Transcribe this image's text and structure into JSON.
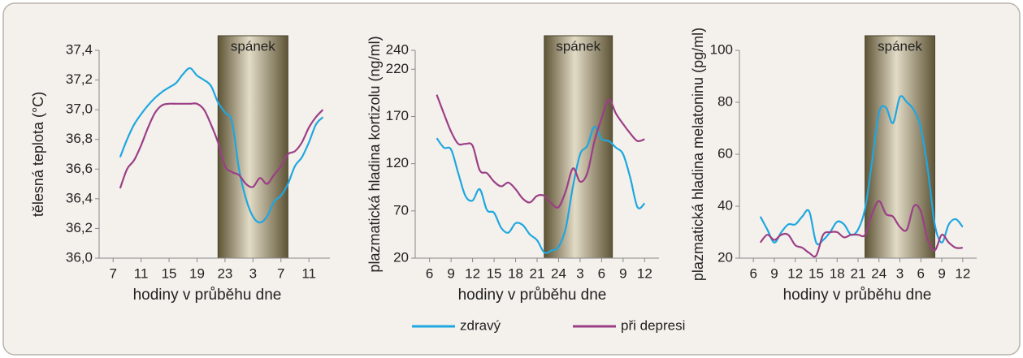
{
  "chart_data": [
    {
      "type": "line",
      "y_label": "tělesná teplota (°C)",
      "x_label": "hodiny v průběhu dne",
      "band": {
        "label": "spánek",
        "range": [
          22,
          32
        ]
      },
      "x": [
        7,
        8,
        9,
        10,
        11,
        12,
        13,
        14,
        15,
        16,
        17,
        18,
        19,
        20,
        21,
        22,
        23,
        24,
        25,
        26,
        27,
        28,
        29,
        30,
        31,
        32,
        33,
        34,
        35,
        36,
        37
      ],
      "xlim": [
        5,
        38
      ],
      "xticks": [
        7,
        11,
        15,
        19,
        23,
        {
          "value": 27,
          "label": "3"
        },
        {
          "value": 31,
          "label": "7"
        },
        {
          "value": 35,
          "label": "11"
        }
      ],
      "ylim": [
        36.0,
        37.4
      ],
      "yticks": [
        {
          "value": 36.0,
          "label": "36,0"
        },
        {
          "value": 36.2,
          "label": "36,2"
        },
        {
          "value": 36.4,
          "label": "36,4"
        },
        {
          "value": 36.6,
          "label": "36,6"
        },
        {
          "value": 36.8,
          "label": "36,8"
        },
        {
          "value": 37.0,
          "label": "37,0"
        },
        {
          "value": 37.2,
          "label": "37,2"
        },
        {
          "value": 37.4,
          "label": "37,4"
        }
      ],
      "series": [
        {
          "name": "zdravý",
          "color": "#1ea7e0",
          "values": [
            null,
            36.68,
            36.8,
            36.9,
            36.97,
            37.03,
            37.08,
            37.12,
            37.15,
            37.18,
            37.24,
            37.28,
            37.23,
            37.2,
            37.16,
            37.05,
            36.98,
            36.92,
            36.6,
            36.4,
            36.28,
            36.24,
            36.28,
            36.38,
            36.42,
            36.5,
            36.62,
            36.68,
            36.78,
            36.9,
            36.95
          ]
        },
        {
          "name": "při depresi",
          "color": "#9b3f86",
          "values": [
            null,
            36.47,
            36.6,
            36.66,
            36.76,
            36.88,
            36.98,
            37.03,
            37.04,
            37.04,
            37.04,
            37.04,
            37.04,
            37.0,
            36.9,
            36.78,
            36.62,
            36.58,
            36.56,
            36.5,
            36.48,
            36.54,
            36.5,
            36.56,
            36.62,
            36.7,
            36.72,
            36.78,
            36.88,
            36.95,
            37.0
          ]
        }
      ]
    },
    {
      "type": "line",
      "y_label": "plazmatická hladina kortizolu (ng/ml)",
      "x_label": "hodiny v průběhu dne",
      "band": {
        "label": "spánek",
        "range": [
          22,
          31.5
        ]
      },
      "x": [
        7,
        8,
        9,
        10,
        11,
        12,
        13,
        14,
        15,
        16,
        17,
        18,
        19,
        20,
        21,
        22,
        23,
        24,
        25,
        26,
        27,
        28,
        29,
        30,
        31,
        32,
        33,
        34,
        35,
        36
      ],
      "xlim": [
        4,
        38
      ],
      "xticks": [
        6,
        9,
        12,
        15,
        18,
        21,
        24,
        {
          "value": 27,
          "label": "3"
        },
        {
          "value": 30,
          "label": "6"
        },
        {
          "value": 33,
          "label": "9"
        },
        {
          "value": 36,
          "label": "12"
        }
      ],
      "ylim": [
        20,
        240
      ],
      "yticks": [
        20,
        70,
        120,
        170,
        220,
        240
      ],
      "series": [
        {
          "color": "#1ea7e0",
          "values": [
            147,
            137,
            135,
            110,
            86,
            81,
            93,
            71,
            68,
            52,
            47,
            57,
            55,
            45,
            39,
            26,
            28,
            32,
            52,
            96,
            130,
            139,
            159,
            146,
            144,
            137,
            130,
            105,
            74,
            78
          ]
        },
        {
          "color": "#9b3f86",
          "values": [
            193,
            173,
            154,
            141,
            141,
            139,
            113,
            110,
            101,
            96,
            100,
            93,
            83,
            79,
            86,
            86,
            78,
            74,
            91,
            115,
            101,
            110,
            144,
            168,
            188,
            173,
            162,
            152,
            144,
            146
          ]
        }
      ]
    },
    {
      "type": "line",
      "y_label": "plazmatická hladina melatoninu (pg/ml)",
      "x_label": "hodiny v průběhu dne",
      "band": {
        "label": "spánek",
        "range": [
          22,
          32
        ]
      },
      "x": [
        7,
        8,
        9,
        10,
        11,
        12,
        13,
        14,
        15,
        16,
        17,
        18,
        19,
        20,
        21,
        22,
        23,
        24,
        25,
        26,
        27,
        28,
        29,
        30,
        31,
        32,
        33,
        34,
        35,
        36
      ],
      "xlim": [
        4,
        38
      ],
      "xticks": [
        6,
        9,
        12,
        15,
        18,
        21,
        24,
        {
          "value": 27,
          "label": "3"
        },
        {
          "value": 30,
          "label": "6"
        },
        {
          "value": 33,
          "label": "9"
        },
        {
          "value": 36,
          "label": "12"
        }
      ],
      "ylim": [
        20,
        100
      ],
      "yticks": [
        20,
        40,
        60,
        80,
        100
      ],
      "series": [
        {
          "color": "#1ea7e0",
          "values": [
            36,
            31,
            26,
            30,
            33,
            33,
            36,
            38,
            26,
            27,
            30,
            34,
            33,
            29,
            31,
            39,
            57,
            76,
            78,
            72,
            82,
            80,
            77,
            70,
            54,
            33,
            26,
            33,
            35,
            32
          ]
        },
        {
          "color": "#9b3f86",
          "values": [
            26,
            29,
            27,
            29,
            29,
            25,
            24,
            22,
            21,
            29,
            30,
            30,
            28,
            29,
            29,
            29,
            37,
            42,
            37,
            36,
            32,
            31,
            40,
            38,
            27,
            23,
            29,
            26,
            24,
            24
          ]
        }
      ]
    }
  ]
}
